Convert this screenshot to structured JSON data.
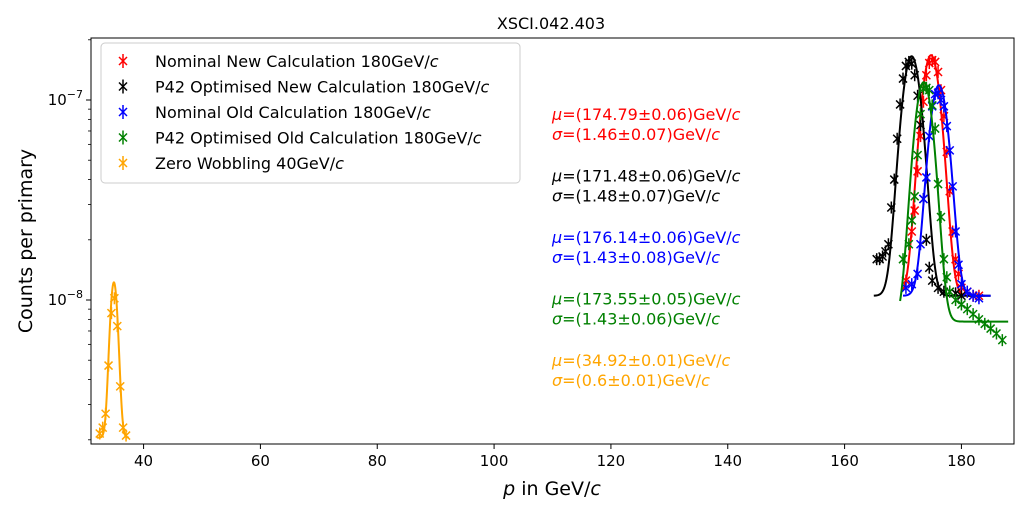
{
  "chart_data": {
    "type": "scatter",
    "title": "XSCI.042.403",
    "xlabel_italic": "p",
    "xlabel_rest": " in GeV/",
    "xlabel_unit": "c",
    "ylabel": "Counts per primary",
    "xlim": [
      31,
      189
    ],
    "ylim_log10": [
      -8.72,
      -6.69
    ],
    "yscale": "log",
    "x_ticks": [
      40,
      60,
      80,
      100,
      120,
      140,
      160,
      180
    ],
    "y_ticks": [
      {
        "value": 1e-07,
        "base": "10",
        "exp": "−7"
      },
      {
        "value": 1e-08,
        "base": "10",
        "exp": "−8"
      }
    ],
    "grid": false,
    "legend_position": "upper left",
    "series": [
      {
        "name_main": "Nominal New Calculation 180GeV/",
        "name_unit": "c",
        "color": "#ff0000",
        "mu": 174.79,
        "sigma": 1.46,
        "fit_amp": 1.57e-07,
        "fit_base": 1.05e-08,
        "fit_range": [
          170.0,
          184.0
        ],
        "x": [
          170.5,
          171.5,
          172.0,
          172.5,
          173.0,
          173.5,
          174.0,
          174.5,
          175.0,
          175.5,
          176.0,
          176.5,
          177.0,
          177.5,
          178.0,
          178.5,
          179.0,
          179.5,
          180.0,
          181.0,
          182.0,
          183.0
        ],
        "y": [
          1.25e-08,
          2.2e-08,
          2.8e-08,
          4.4e-08,
          6.6e-08,
          9.8e-08,
          1.33e-07,
          1.53e-07,
          1.58e-07,
          1.55e-07,
          1.38e-07,
          1.12e-07,
          8.3e-08,
          5.5e-08,
          3.5e-08,
          2.2e-08,
          1.6e-08,
          1.35e-08,
          1.15e-08,
          1.1e-08,
          1.05e-08,
          1.05e-08
        ]
      },
      {
        "name_main": "P42 Optimised New Calculation 180GeV/",
        "name_unit": "c",
        "color": "#000000",
        "mu": 171.48,
        "sigma": 1.48,
        "fit_amp": 1.55e-07,
        "fit_base": 1.05e-08,
        "fit_range": [
          165.0,
          185.0
        ],
        "x": [
          165.5,
          166.0,
          166.5,
          167.0,
          167.5,
          168.0,
          168.5,
          169.0,
          169.5,
          170.0,
          170.5,
          171.0,
          171.5,
          172.0,
          172.5,
          173.0,
          173.5,
          174.0,
          174.5,
          175.0,
          176.0,
          177.0,
          178.0,
          179.0,
          180.0
        ],
        "y": [
          1.6e-08,
          1.6e-08,
          1.65e-08,
          1.75e-08,
          1.9e-08,
          2.9e-08,
          4e-08,
          6.4e-08,
          9.5e-08,
          1.28e-07,
          1.48e-07,
          1.55e-07,
          1.52e-07,
          1.33e-07,
          1.05e-07,
          7.5e-08,
          3.2e-08,
          2e-08,
          1.45e-08,
          1.25e-08,
          1.15e-08,
          1.1e-08,
          1.1e-08,
          1.08e-08,
          1.05e-08
        ]
      },
      {
        "name_main": "Nominal Old Calculation 180GeV/",
        "name_unit": "c",
        "color": "#0000ff",
        "mu": 176.14,
        "sigma": 1.43,
        "fit_amp": 1.08e-07,
        "fit_base": 1.05e-08,
        "fit_range": [
          170.0,
          185.0
        ],
        "x": [
          170.5,
          171.5,
          172.5,
          173.0,
          173.5,
          174.0,
          174.5,
          175.0,
          175.5,
          176.0,
          176.5,
          177.0,
          177.5,
          178.0,
          178.5,
          179.0,
          179.5,
          180.0,
          181.0,
          182.0,
          183.0
        ],
        "y": [
          1.15e-08,
          1.2e-08,
          1.35e-08,
          1.9e-08,
          3.2e-08,
          4.1e-08,
          6.6e-08,
          9.3e-08,
          1.07e-07,
          1.08e-07,
          1e-07,
          9.3e-08,
          7.4e-08,
          5.6e-08,
          3.7e-08,
          2.2e-08,
          1.5e-08,
          1.2e-08,
          1.1e-08,
          1.05e-08,
          1.02e-08
        ]
      },
      {
        "name_main": "P42 Optimised Old Calculation 180GeV/",
        "name_unit": "c",
        "color": "#008000",
        "mu": 173.55,
        "sigma": 1.43,
        "fit_amp": 1.15e-07,
        "fit_base": 7.8e-09,
        "fit_range": [
          169.5,
          188.0
        ],
        "x": [
          170.0,
          171.0,
          171.5,
          172.0,
          172.5,
          173.0,
          173.5,
          174.0,
          174.5,
          175.0,
          175.5,
          176.0,
          176.5,
          177.0,
          177.5,
          178.0,
          179.0,
          180.0,
          181.0,
          182.0,
          183.0,
          184.0,
          185.0,
          186.0,
          187.0
        ],
        "y": [
          1.6e-08,
          1.9e-08,
          2.5e-08,
          3.3e-08,
          5.3e-08,
          8.5e-08,
          1.14e-07,
          1.15e-07,
          1.12e-07,
          9.4e-08,
          7.2e-08,
          3.8e-08,
          2.6e-08,
          1.6e-08,
          1.3e-08,
          1.1e-08,
          1e-08,
          9.5e-09,
          9e-09,
          8.5e-09,
          8e-09,
          7.6e-09,
          7.2e-09,
          6.8e-09,
          6.3e-09
        ]
      },
      {
        "name_main": "Zero Wobbling 40GeV/",
        "name_unit": "c",
        "color": "#ffa500",
        "mu": 34.92,
        "sigma": 0.6,
        "fit_amp": 1.02e-08,
        "fit_base": 2.05e-09,
        "fit_range": [
          32.0,
          37.5
        ],
        "x": [
          32.5,
          33.0,
          33.5,
          34.0,
          34.5,
          35.0,
          35.5,
          36.0,
          36.5,
          37.0
        ],
        "y": [
          2.15e-09,
          2.3e-09,
          2.7e-09,
          4.7e-09,
          8.6e-09,
          1.02e-08,
          7.4e-09,
          3.7e-09,
          2.3e-09,
          2.1e-09
        ]
      }
    ],
    "annotations": [
      {
        "color": "#ff0000",
        "mu_text": "=(174.79±0.06)GeV/",
        "sigma_text": "=(1.46±0.07)GeV/"
      },
      {
        "color": "#000000",
        "mu_text": "=(171.48±0.06)GeV/",
        "sigma_text": "=(1.48±0.07)GeV/"
      },
      {
        "color": "#0000ff",
        "mu_text": "=(176.14±0.06)GeV/",
        "sigma_text": "=(1.43±0.08)GeV/"
      },
      {
        "color": "#008000",
        "mu_text": "=(173.55±0.05)GeV/",
        "sigma_text": "=(1.43±0.06)GeV/"
      },
      {
        "color": "#ffa500",
        "mu_text": "=(34.92±0.01)GeV/",
        "sigma_text": "=(0.6±0.01)GeV/"
      }
    ],
    "mu_symbol": "μ",
    "sigma_symbol": "σ",
    "unit_symbol": "c"
  }
}
